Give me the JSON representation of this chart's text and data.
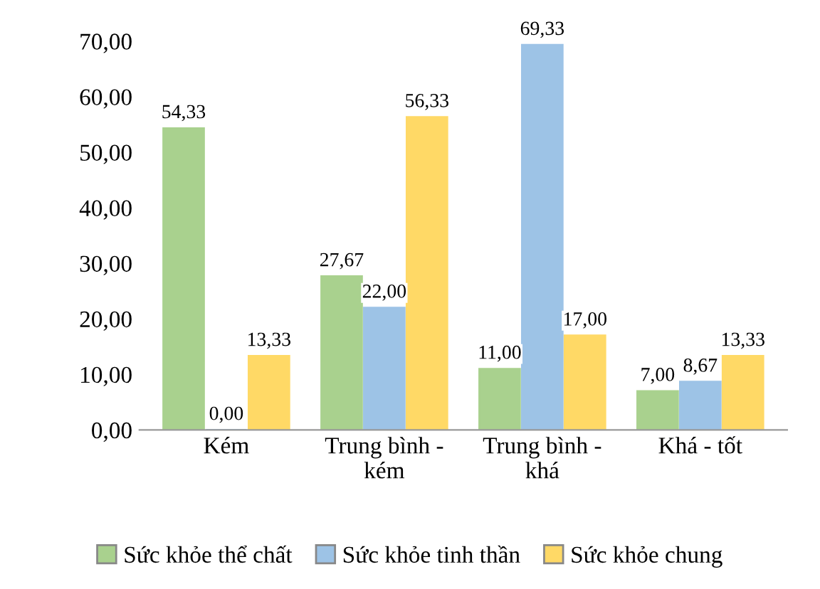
{
  "chart_data": {
    "type": "bar",
    "categories": [
      "Kém",
      "Trung bình -\nkém",
      "Trung bình -\nkhá",
      "Khá - tốt"
    ],
    "series": [
      {
        "name": "Sức khỏe thể chất",
        "color": "#a9d18e",
        "values": [
          54.33,
          27.67,
          11.0,
          7.0
        ],
        "value_labels": [
          "54,33",
          "27,67",
          "11,00",
          "7,00"
        ]
      },
      {
        "name": "Sức khỏe tinh thần",
        "color": "#9dc3e6",
        "values": [
          0.0,
          22.0,
          69.33,
          8.67
        ],
        "value_labels": [
          "0,00",
          "22,00",
          "69,33",
          "8,67"
        ]
      },
      {
        "name": "Sức khỏe chung",
        "color": "#ffd966",
        "values": [
          13.33,
          56.33,
          17.0,
          13.33
        ],
        "value_labels": [
          "13,33",
          "56,33",
          "17,00",
          "13,33"
        ]
      }
    ],
    "ylim": [
      0,
      70
    ],
    "yticks": [
      {
        "value": 0,
        "label": "0,00"
      },
      {
        "value": 10,
        "label": "10,00"
      },
      {
        "value": 20,
        "label": "20,00"
      },
      {
        "value": 30,
        "label": "30,00"
      },
      {
        "value": 40,
        "label": "40,00"
      },
      {
        "value": 50,
        "label": "50,00"
      },
      {
        "value": 60,
        "label": "60,00"
      },
      {
        "value": 70,
        "label": "70,00"
      }
    ],
    "grid": false,
    "legend": "bottom"
  }
}
